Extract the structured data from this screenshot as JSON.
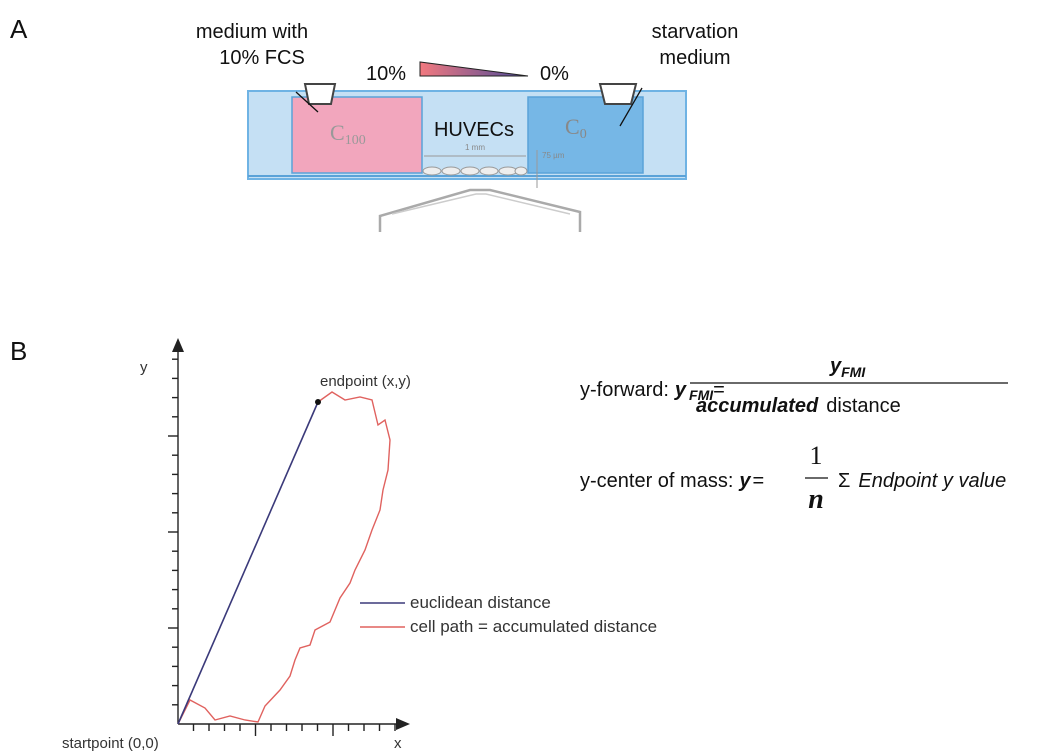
{
  "panel_a": {
    "label": "A",
    "left_note": [
      "medium with",
      "10% FCS"
    ],
    "right_note": [
      "starvation",
      "medium"
    ],
    "gradient_high": "10%",
    "gradient_low": "0%",
    "chamber_left": {
      "letter": "C",
      "sub": "100"
    },
    "chamber_right": {
      "letter": "C",
      "sub": "0"
    },
    "center": "HUVECs",
    "width_scale": "1 mm",
    "height_scale": "75 µm"
  },
  "panel_b": {
    "label": "B",
    "y_axis": "y",
    "x_axis": "x",
    "endpoint": "endpoint (x,y)",
    "startpoint": "startpoint (0,0)",
    "legend": [
      "euclidean distance",
      "cell path = accumulated distance"
    ],
    "formula_forward": {
      "name": "y-forward:",
      "lhs": "y",
      "lhs_sub": "FMI",
      "equals": "=",
      "numerator": "y",
      "numerator_sub": "FMI",
      "denominator_italic": "accumulated",
      "denominator": "distance"
    },
    "formula_center": {
      "name": "y-center of mass:",
      "lhs": "y",
      "equals": "=",
      "numerator": "1",
      "denominator": "n",
      "sum": "Σ",
      "term": "Endpoint y value"
    }
  }
}
